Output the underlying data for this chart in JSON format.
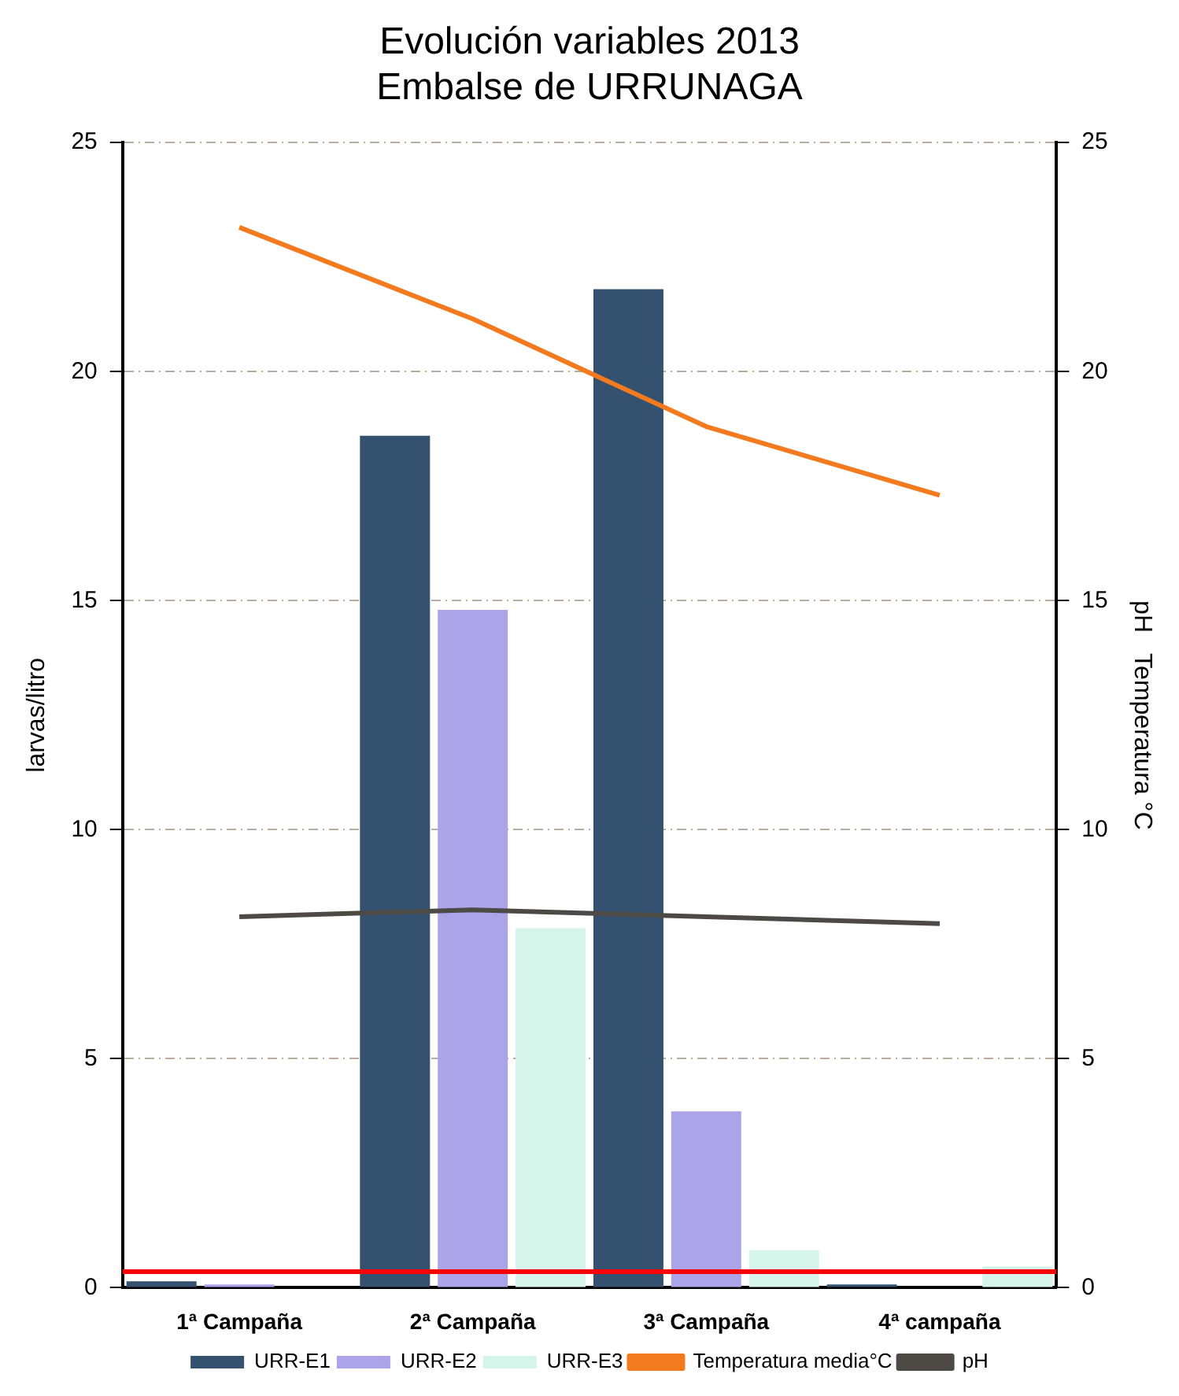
{
  "chart_data": {
    "type": "bar",
    "title": "Evolución variables 2013\nEmbalse de URRUNAGA",
    "ylabel": "larvas/litro",
    "y2label": "pH   Temperatura °C",
    "categories": [
      "1ª Campaña",
      "2ª Campaña",
      "3ª Campaña",
      "4ª campaña"
    ],
    "series": [
      {
        "name": "URR-E1",
        "color": "#34526f",
        "values": [
          0.14,
          18.6,
          21.8,
          0.07
        ]
      },
      {
        "name": "URR-E2",
        "color": "#aca4e8",
        "values": [
          0.07,
          14.8,
          3.85,
          null
        ]
      },
      {
        "name": "URR-E3",
        "color": "#d5f4ea",
        "values": [
          0,
          7.85,
          0.82,
          0.46
        ]
      },
      {
        "name": "Temperatura media°C",
        "type": "line",
        "axis": "y2",
        "color": "#f47a20",
        "values": [
          23.15,
          21.15,
          18.8,
          17.3
        ]
      },
      {
        "name": "pH",
        "type": "line",
        "axis": "y2",
        "color": "#4d4a45",
        "values": [
          8.1,
          8.25,
          8.1,
          7.95
        ]
      }
    ],
    "ylim": [
      0,
      25
    ],
    "yticks": [
      0,
      5,
      10,
      15,
      20,
      25
    ],
    "y2lim": [
      0,
      25
    ],
    "y2ticks": [
      0,
      5,
      10,
      15,
      20,
      25
    ],
    "ref_lines": [
      {
        "axis": "y",
        "value": 0.35,
        "color": "#ff0000"
      }
    ],
    "grid": "y",
    "legend": "bottom",
    "marker": "none",
    "line_style": "solid"
  }
}
